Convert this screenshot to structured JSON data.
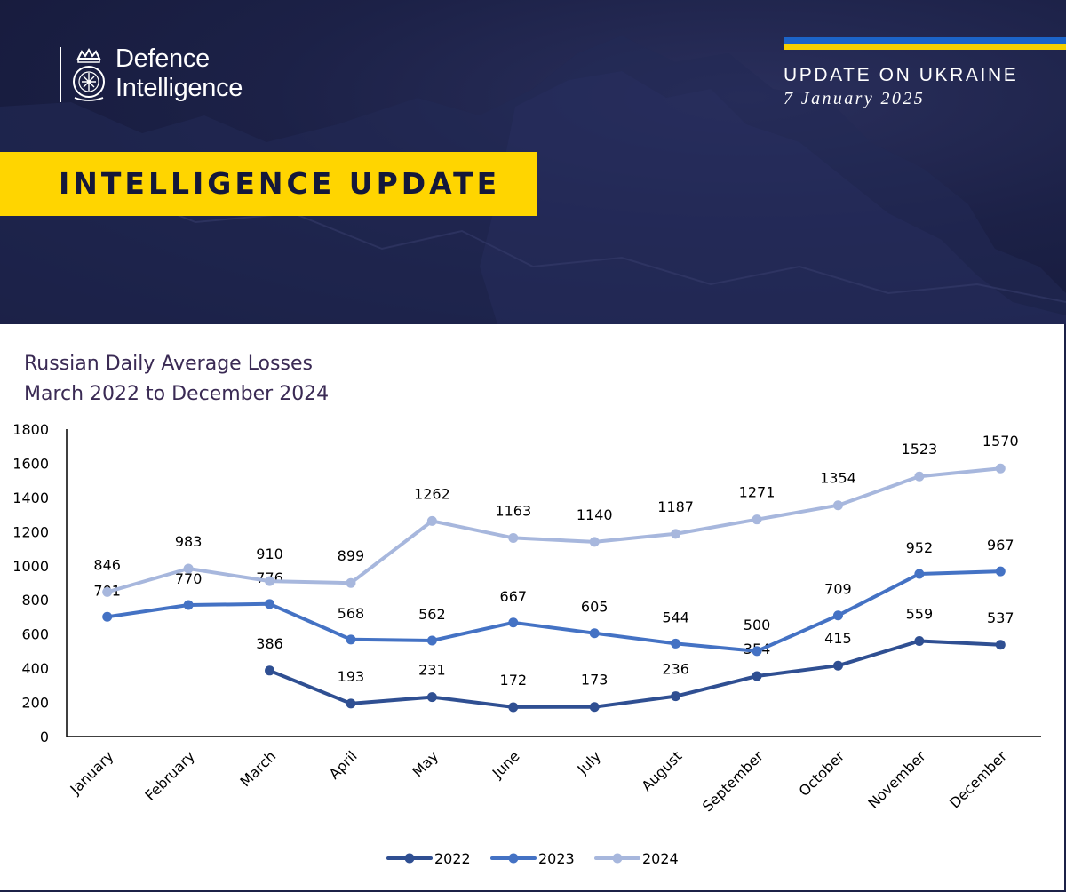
{
  "header": {
    "logo_line1": "Defence",
    "logo_line2": "Intelligence",
    "update_title": "UPDATE ON UKRAINE",
    "update_date": "7 January 2025",
    "badge_text": "INTELLIGENCE UPDATE",
    "colors": {
      "background": "#1c2147",
      "badge": "#ffd500",
      "flag_blue": "#1c64c8",
      "flag_yellow": "#f5d000"
    }
  },
  "chart_data": {
    "type": "line",
    "title": "Russian Daily Average Losses",
    "subtitle": "March 2022 to December 2024",
    "categories": [
      "January",
      "February",
      "March",
      "April",
      "May",
      "June",
      "July",
      "August",
      "September",
      "October",
      "November",
      "December"
    ],
    "ylim": [
      0,
      1800
    ],
    "yticks": [
      0,
      200,
      400,
      600,
      800,
      1000,
      1200,
      1400,
      1600,
      1800
    ],
    "grid": false,
    "legend_position": "bottom",
    "series": [
      {
        "name": "2022",
        "color": "#2f4f92",
        "values": [
          null,
          null,
          386,
          193,
          231,
          172,
          173,
          236,
          354,
          415,
          559,
          537
        ]
      },
      {
        "name": "2023",
        "color": "#4472c4",
        "values": [
          701,
          770,
          776,
          568,
          562,
          667,
          605,
          544,
          500,
          709,
          952,
          967
        ]
      },
      {
        "name": "2024",
        "color": "#a7b7dd",
        "values": [
          846,
          983,
          910,
          899,
          1262,
          1163,
          1140,
          1187,
          1271,
          1354,
          1523,
          1570
        ]
      }
    ]
  }
}
